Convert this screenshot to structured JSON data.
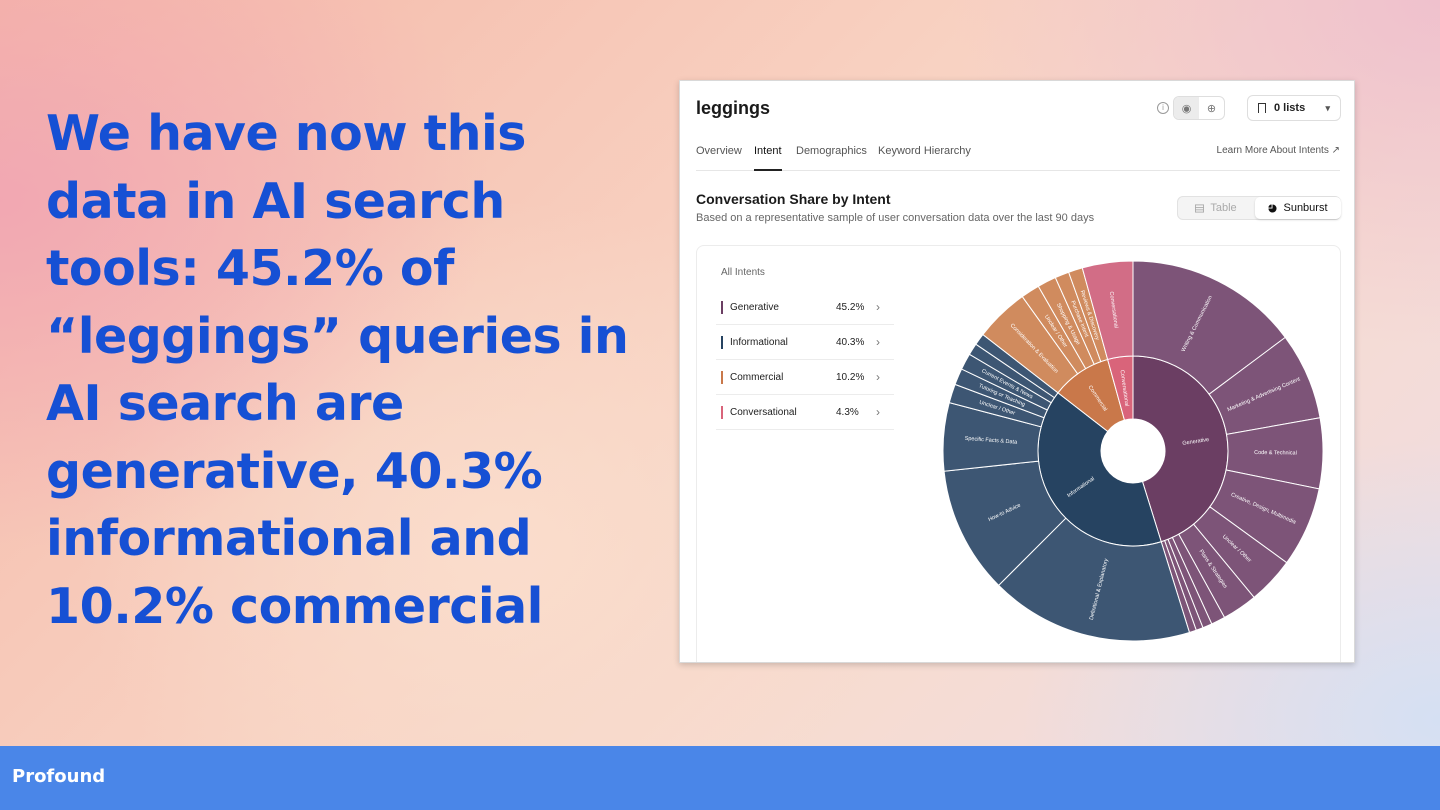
{
  "headline": "We have now this data in AI search tools: 45.2% of “leggings” queries in AI search are generative, 40.3% informational and 10.2% commercial",
  "brand": "Profound",
  "panel": {
    "title": "leggings",
    "lists_label": "0 lists",
    "tabs": [
      {
        "label": "Overview",
        "active": false
      },
      {
        "label": "Intent",
        "active": true
      },
      {
        "label": "Demographics",
        "active": false
      },
      {
        "label": "Keyword Hierarchy",
        "active": false
      }
    ],
    "learn_more": "Learn More About Intents",
    "section_title": "Conversation Share by Intent",
    "section_subtitle": "Based on a representative sample of user conversation data over the last 90 days",
    "view_toggle": {
      "table": "Table",
      "sunburst": "Sunburst"
    },
    "all_intents_label": "All Intents",
    "intents": [
      {
        "name": "Generative",
        "pct": "45.2%",
        "color": "#6b3e63"
      },
      {
        "name": "Informational",
        "pct": "40.3%",
        "color": "#264361"
      },
      {
        "name": "Commercial",
        "pct": "10.2%",
        "color": "#c9784a"
      },
      {
        "name": "Conversational",
        "pct": "4.3%",
        "color": "#d9647a"
      }
    ]
  },
  "chart_data": {
    "type": "sunburst",
    "inner": [
      {
        "name": "Generative",
        "value": 45.2,
        "color": "#6b3e63"
      },
      {
        "name": "Informational",
        "value": 40.3,
        "color": "#264361"
      },
      {
        "name": "Commercial",
        "value": 10.2,
        "color": "#c9784a"
      },
      {
        "name": "Conversational",
        "value": 4.3,
        "color": "#d9647a"
      }
    ],
    "outer": [
      {
        "name": "Writing & Communication",
        "value": 14.8,
        "color": "#7d5478"
      },
      {
        "name": "Marketing & Advertising Content",
        "value": 7.4,
        "color": "#7d5478"
      },
      {
        "name": "Code & Technical",
        "value": 6.0,
        "color": "#7d5478"
      },
      {
        "name": "Creative, Design, Multimedia",
        "value": 6.8,
        "color": "#7d5478"
      },
      {
        "name": "Unclear / Other",
        "value": 4.0,
        "color": "#7d5478"
      },
      {
        "name": "Plans & Strategies",
        "value": 3.0,
        "color": "#7d5478"
      },
      {
        "name": "",
        "value": 1.2,
        "color": "#7d5478"
      },
      {
        "name": "",
        "value": 0.8,
        "color": "#7d5478"
      },
      {
        "name": "",
        "value": 0.6,
        "color": "#7d5478"
      },
      {
        "name": "",
        "value": 0.6,
        "color": "#7d5478"
      },
      {
        "name": "Definitional & Explanatory",
        "value": 17.3,
        "color": "#3d5673"
      },
      {
        "name": "How-to Advice",
        "value": 10.8,
        "color": "#3d5673"
      },
      {
        "name": "Specific Facts & Data",
        "value": 5.8,
        "color": "#3d5673"
      },
      {
        "name": "Unclear / Other",
        "value": 1.6,
        "color": "#3d5673"
      },
      {
        "name": "Tutoring or Teaching",
        "value": 1.4,
        "color": "#3d5673"
      },
      {
        "name": "Current Events & News",
        "value": 1.4,
        "color": "#3d5673"
      },
      {
        "name": "",
        "value": 1.0,
        "color": "#3d5673"
      },
      {
        "name": "",
        "value": 1.0,
        "color": "#3d5673"
      },
      {
        "name": "Consideration & Evaluation",
        "value": 4.6,
        "color": "#d08b5e"
      },
      {
        "name": "Unclear / Other",
        "value": 1.6,
        "color": "#d08b5e"
      },
      {
        "name": "Shopping & Usage",
        "value": 1.6,
        "color": "#d08b5e"
      },
      {
        "name": "Purchase Intent",
        "value": 1.2,
        "color": "#d08b5e"
      },
      {
        "name": "Reviews & Discovery",
        "value": 1.2,
        "color": "#d08b5e"
      },
      {
        "name": "Conversational",
        "value": 4.3,
        "color": "#d26d86"
      }
    ]
  }
}
